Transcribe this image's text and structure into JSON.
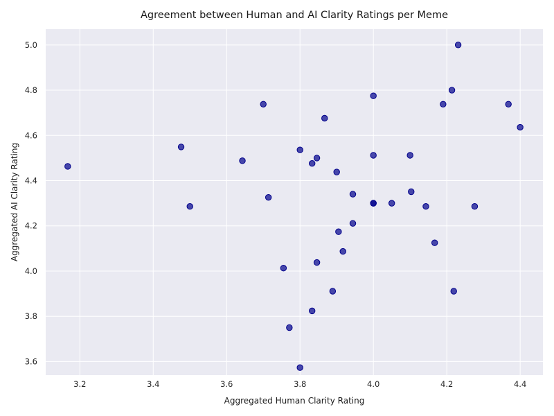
{
  "chart_data": {
    "type": "scatter",
    "title": "Agreement between Human and AI Clarity Ratings per Meme",
    "xlabel": "Aggregated Human Clarity Rating",
    "ylabel": "Aggregated AI Clarity Rating",
    "xlim": [
      3.107,
      4.462
    ],
    "ylim": [
      3.54,
      5.07
    ],
    "xticks": [
      "3.2",
      "3.4",
      "3.6",
      "3.8",
      "4.0",
      "4.2",
      "4.4"
    ],
    "yticks": [
      "3.6",
      "3.8",
      "4.0",
      "4.2",
      "4.4",
      "4.6",
      "4.8",
      "5.0"
    ],
    "grid": true,
    "background": "#eaeaf2",
    "marker_color": "#00008b",
    "points": [
      {
        "x": 3.167,
        "y": 4.463
      },
      {
        "x": 3.476,
        "y": 4.549
      },
      {
        "x": 3.5,
        "y": 4.286
      },
      {
        "x": 3.643,
        "y": 4.488
      },
      {
        "x": 3.7,
        "y": 4.738
      },
      {
        "x": 3.714,
        "y": 4.326
      },
      {
        "x": 3.755,
        "y": 4.013
      },
      {
        "x": 3.771,
        "y": 3.75
      },
      {
        "x": 3.8,
        "y": 4.536
      },
      {
        "x": 3.8,
        "y": 3.573
      },
      {
        "x": 3.833,
        "y": 4.476
      },
      {
        "x": 3.833,
        "y": 3.824
      },
      {
        "x": 3.846,
        "y": 4.5
      },
      {
        "x": 3.846,
        "y": 4.038
      },
      {
        "x": 3.867,
        "y": 4.676
      },
      {
        "x": 3.889,
        "y": 3.911
      },
      {
        "x": 3.9,
        "y": 4.438
      },
      {
        "x": 3.905,
        "y": 4.174
      },
      {
        "x": 3.917,
        "y": 4.087
      },
      {
        "x": 3.944,
        "y": 4.34
      },
      {
        "x": 3.944,
        "y": 4.211
      },
      {
        "x": 4.0,
        "y": 4.775
      },
      {
        "x": 4.0,
        "y": 4.512
      },
      {
        "x": 4.0,
        "y": 4.3
      },
      {
        "x": 4.0,
        "y": 4.3
      },
      {
        "x": 4.05,
        "y": 4.3
      },
      {
        "x": 4.1,
        "y": 4.512
      },
      {
        "x": 4.103,
        "y": 4.351
      },
      {
        "x": 4.143,
        "y": 4.286
      },
      {
        "x": 4.167,
        "y": 4.125
      },
      {
        "x": 4.19,
        "y": 4.738
      },
      {
        "x": 4.214,
        "y": 4.8
      },
      {
        "x": 4.219,
        "y": 3.911
      },
      {
        "x": 4.231,
        "y": 5.0
      },
      {
        "x": 4.276,
        "y": 4.286
      },
      {
        "x": 4.368,
        "y": 4.738
      },
      {
        "x": 4.4,
        "y": 4.636
      }
    ]
  }
}
